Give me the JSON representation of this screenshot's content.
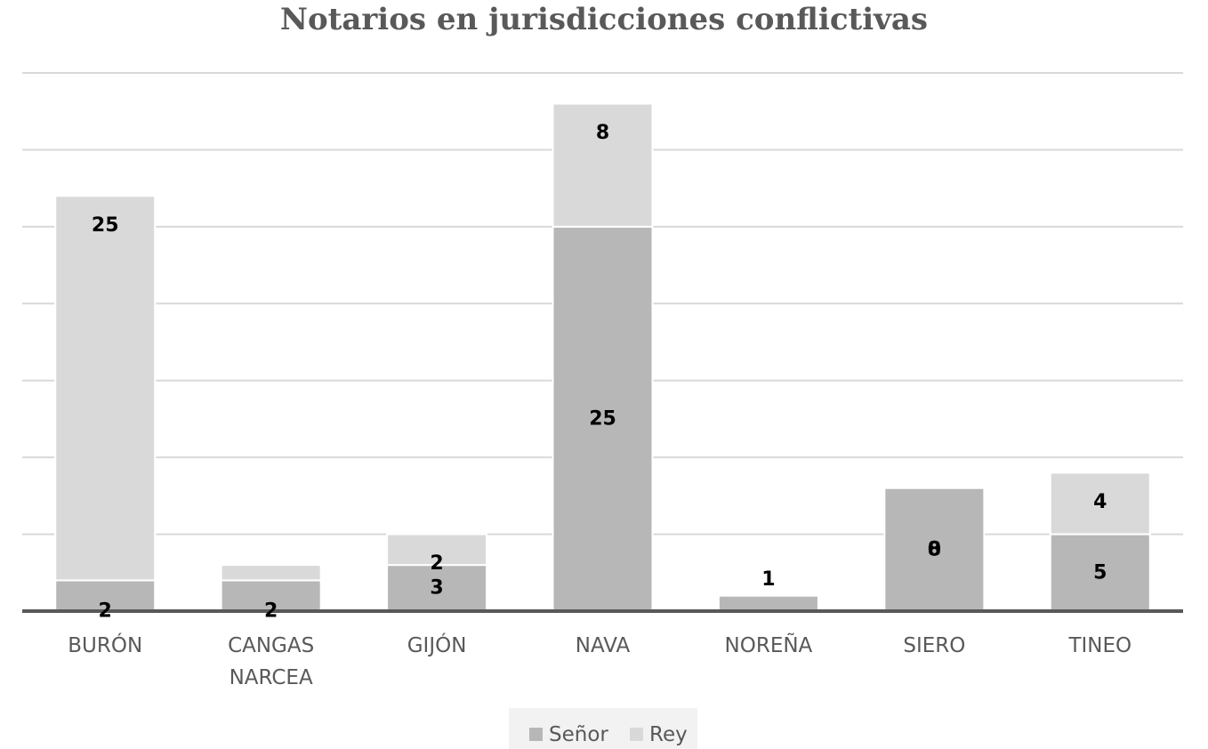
{
  "chart_data": {
    "type": "bar",
    "stacked": true,
    "title": "Notarios en jurisdicciones conflictivas",
    "xlabel": "",
    "ylabel": "",
    "ylim": [
      0,
      35
    ],
    "gridlines": [
      5,
      10,
      15,
      20,
      25,
      30,
      35
    ],
    "grid": true,
    "y_tick_labels": false,
    "legend_position": "bottom",
    "categories": [
      [
        "BURÓN"
      ],
      [
        "CANGAS",
        "NARCEA"
      ],
      [
        "GIJÓN"
      ],
      [
        "NAVA"
      ],
      [
        "NOREÑA"
      ],
      [
        "SIERO"
      ],
      [
        "TINEO"
      ]
    ],
    "series": [
      {
        "name": "Señor",
        "color": "#b7b7b7",
        "values": [
          2,
          2,
          3,
          25,
          1,
          8,
          5
        ],
        "labels": [
          "2",
          "2",
          "3",
          "25",
          "1",
          "8",
          "5"
        ]
      },
      {
        "name": "Rey",
        "color": "#d9d9d9",
        "values": [
          25,
          1,
          2,
          8,
          0,
          0,
          4
        ],
        "labels": [
          "25",
          "",
          "2",
          "8",
          "",
          "0",
          "4"
        ]
      }
    ]
  }
}
